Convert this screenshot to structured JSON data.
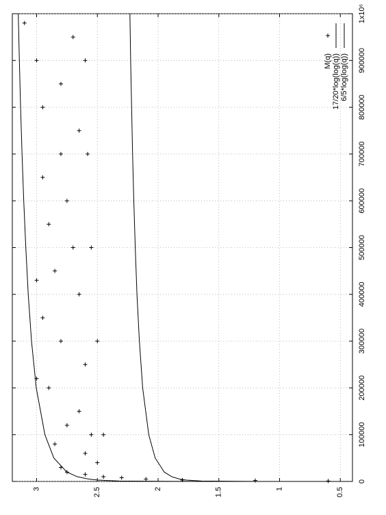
{
  "chart_data": {
    "type": "scatter",
    "xlim": [
      0,
      1000000
    ],
    "ylim": [
      0.4,
      3.2
    ],
    "xticks": [
      0,
      100000,
      200000,
      300000,
      400000,
      500000,
      600000,
      700000,
      800000,
      900000,
      {
        "value": 1000000,
        "label": "1x10⁶"
      }
    ],
    "yticks": [
      0.5,
      1,
      1.5,
      2,
      2.5,
      3
    ],
    "grid": true,
    "legend": "bottom right",
    "series": [
      {
        "name": "M(q)",
        "color": "#000000",
        "marker": "plus",
        "x": [
          1000,
          2000,
          3000,
          5000,
          8000,
          10000,
          15000,
          20000,
          30000,
          40000,
          60000,
          80000,
          100000,
          100000,
          120000,
          150000,
          200000,
          220000,
          250000,
          300000,
          300000,
          350000,
          400000,
          430000,
          450000,
          500000,
          500000,
          550000,
          600000,
          650000,
          700000,
          700000,
          750000,
          800000,
          850000,
          900000,
          900000,
          950000,
          980000
        ],
        "values": [
          0.6,
          1.2,
          1.8,
          2.1,
          2.3,
          2.45,
          2.6,
          2.75,
          2.8,
          2.5,
          2.6,
          2.85,
          2.55,
          2.45,
          2.75,
          2.65,
          2.9,
          3.0,
          2.6,
          2.8,
          2.5,
          2.95,
          2.65,
          3.0,
          2.85,
          2.7,
          2.55,
          2.9,
          2.75,
          2.95,
          2.8,
          2.58,
          2.65,
          2.95,
          2.8,
          3.0,
          2.6,
          2.7,
          3.1
        ]
      },
      {
        "name": "17/20*log(log(q))",
        "color": "#000000",
        "marker": "line",
        "x": [
          5,
          10,
          100,
          1000,
          3000,
          5000,
          10000,
          20000,
          50000,
          100000,
          200000,
          300000,
          400000,
          500000,
          600000,
          700000,
          800000,
          900000,
          1000000
        ],
        "values": [
          0.405,
          0.709,
          1.298,
          1.643,
          1.768,
          1.821,
          1.887,
          1.949,
          2.024,
          2.077,
          2.127,
          2.154,
          2.174,
          2.188,
          2.2,
          2.21,
          2.218,
          2.226,
          2.232
        ]
      },
      {
        "name": "6/5*log(log(q))",
        "color": "#000000",
        "marker": "line",
        "x": [
          5,
          10,
          100,
          1000,
          3000,
          5000,
          10000,
          20000,
          50000,
          100000,
          200000,
          300000,
          400000,
          500000,
          600000,
          700000,
          800000,
          900000,
          1000000
        ],
        "values": [
          0.571,
          1.001,
          1.833,
          2.319,
          2.496,
          2.57,
          2.664,
          2.751,
          2.858,
          2.932,
          3.003,
          3.042,
          3.069,
          3.089,
          3.106,
          3.12,
          3.132,
          3.142,
          3.151
        ]
      }
    ]
  }
}
